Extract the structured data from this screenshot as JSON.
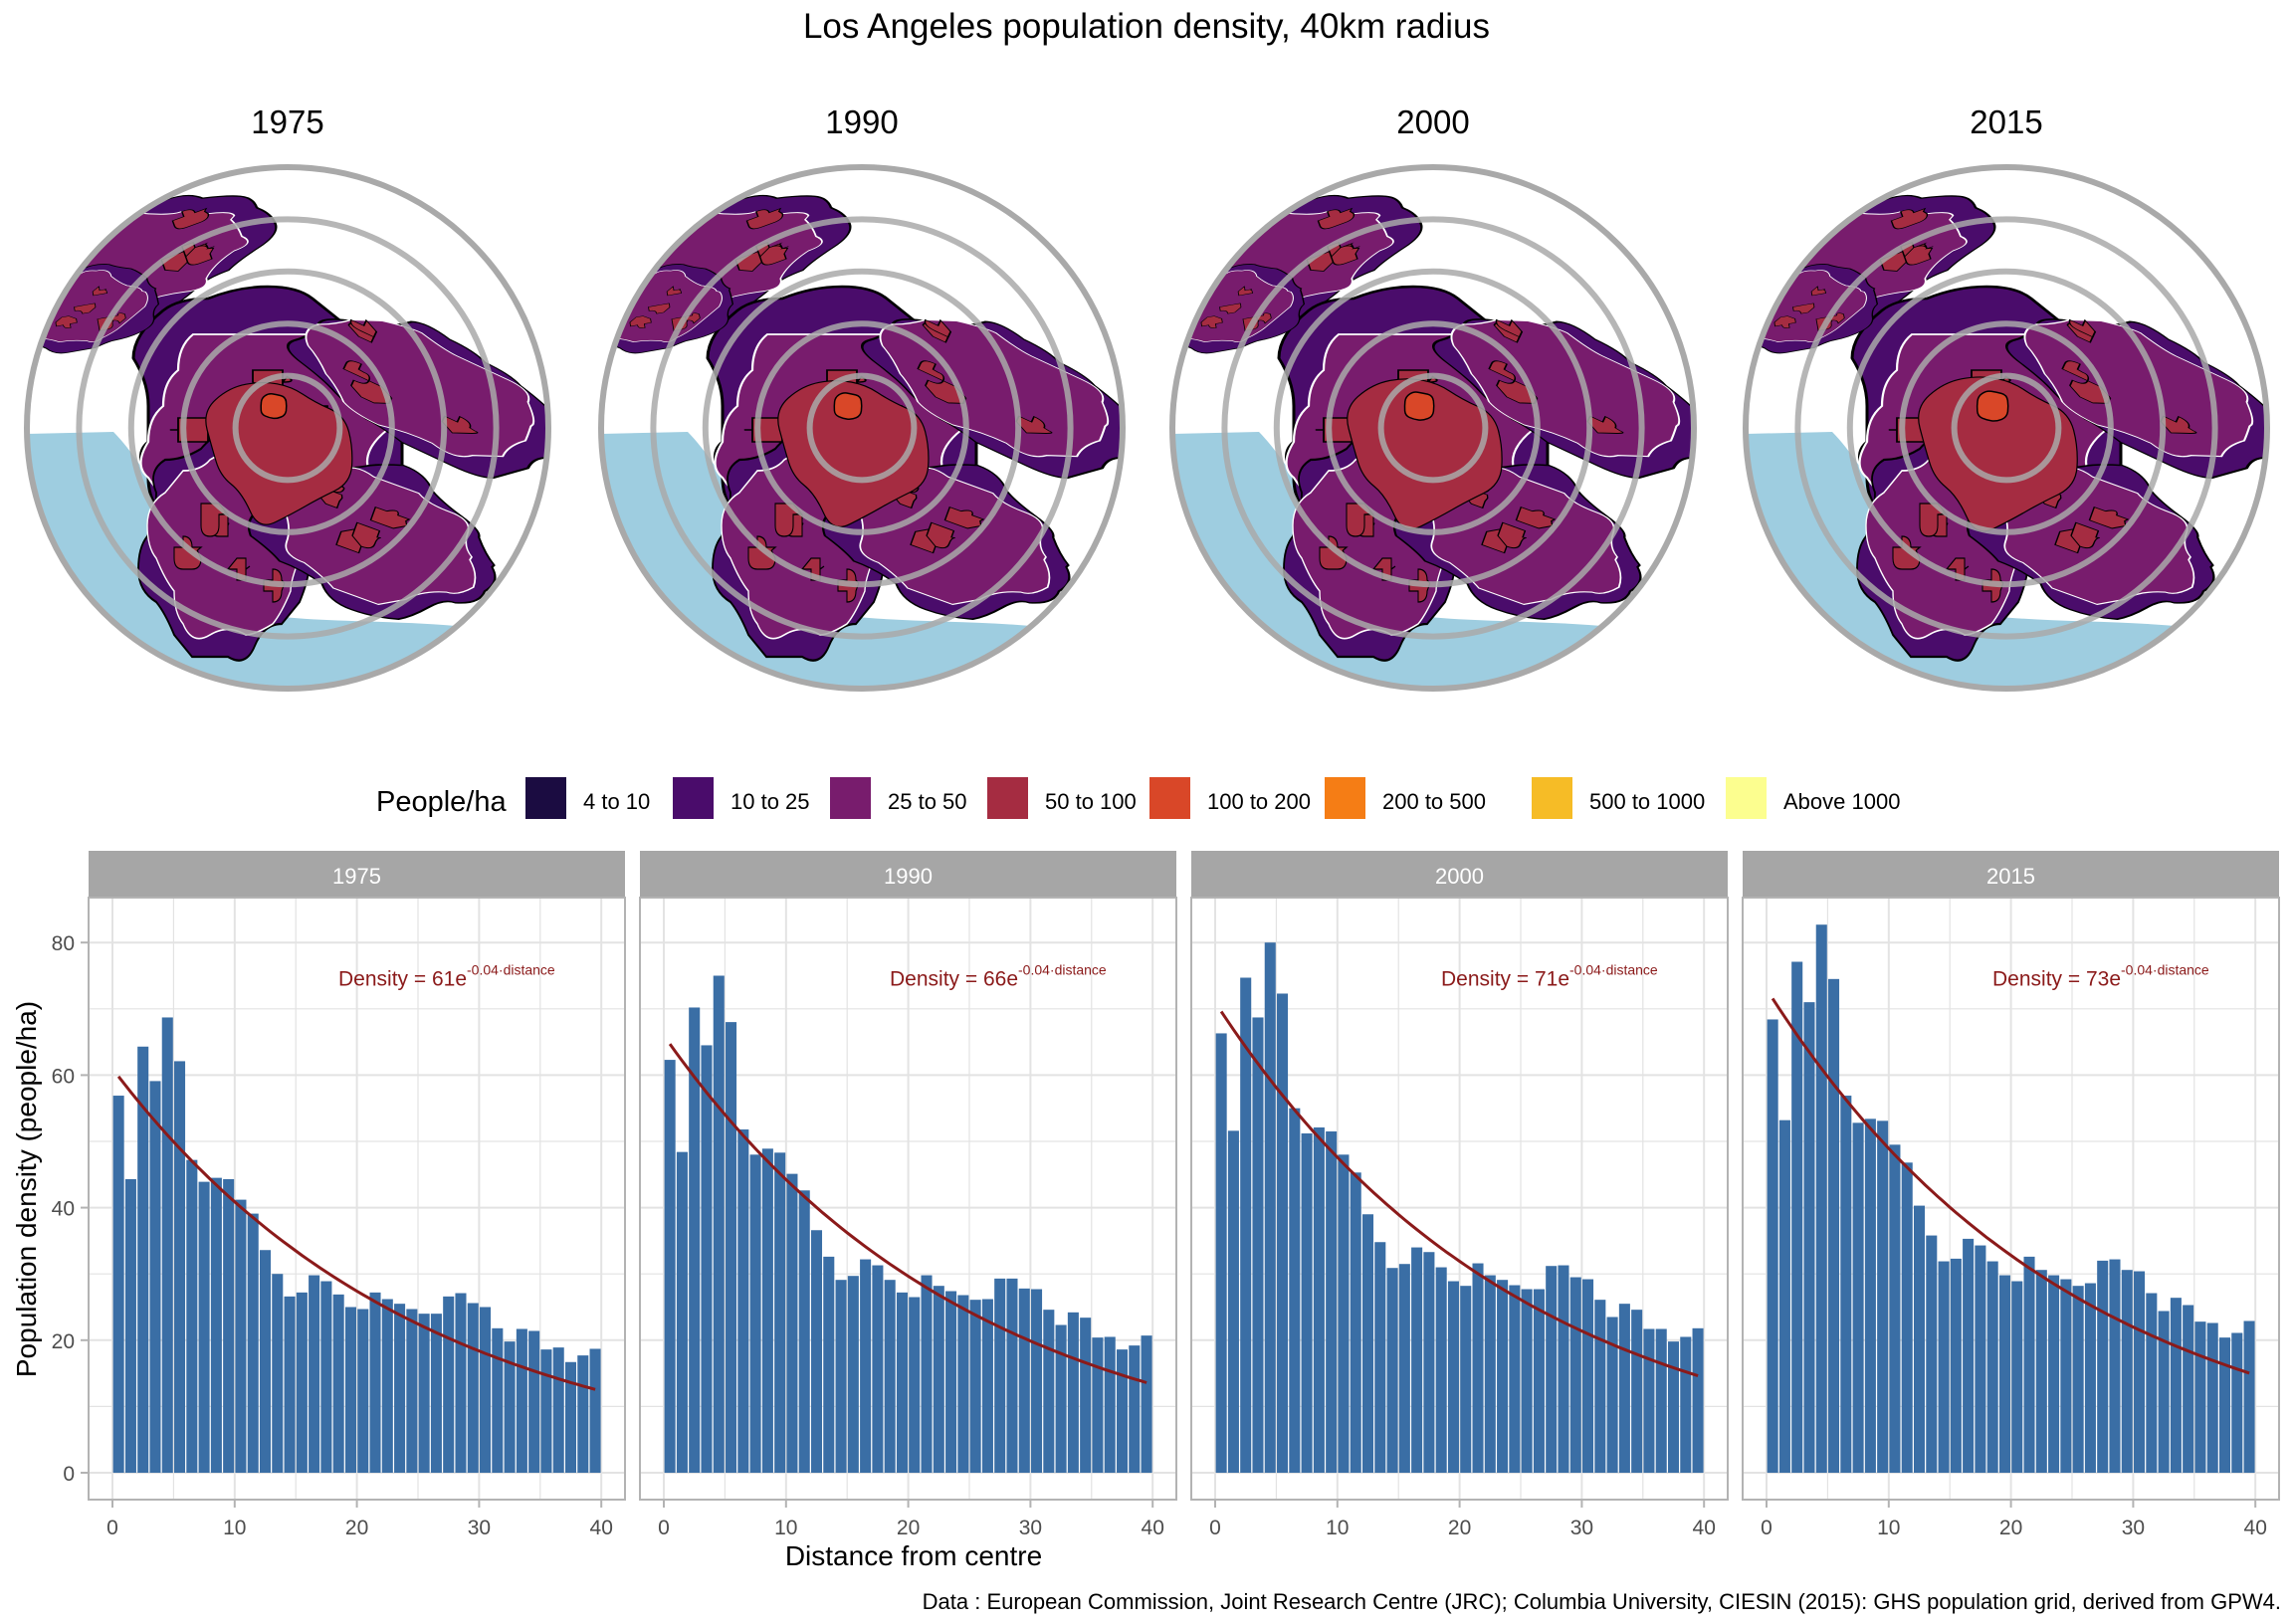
{
  "title": "Los Angeles population density, 40km radius",
  "caption": "Data : European Commission, Joint Research Centre (JRC); Columbia University, CIESIN (2015): GHS population grid, derived from GPW4.",
  "colors": {
    "bar": "#3A6EA5",
    "fit": "#8B1A1A",
    "strip": "#A6A6A6",
    "water": "#9ECDE0",
    "ring": "#A9A9A9"
  },
  "maps": {
    "years": [
      "1975",
      "1990",
      "2000",
      "2015"
    ],
    "ring_count": 5,
    "radius_km": 40
  },
  "legend": {
    "title": "People/ha",
    "items": [
      {
        "label": "4 to 10",
        "color": "#1B0C41"
      },
      {
        "label": "10 to 25",
        "color": "#4A0C6B"
      },
      {
        "label": "25 to 50",
        "color": "#781C6D"
      },
      {
        "label": "50 to 100",
        "color": "#A52C41"
      },
      {
        "label": "100 to 200",
        "color": "#D94728"
      },
      {
        "label": "200 to 500",
        "color": "#F57D15"
      },
      {
        "label": "500 to 1000",
        "color": "#F6BC26"
      },
      {
        "label": "Above 1000",
        "color": "#FCFE8F"
      }
    ]
  },
  "chart_data": {
    "type": "bar",
    "title": "Los Angeles population density, 40km radius",
    "xlabel": "Distance from centre",
    "ylabel": "Population density (people/ha)",
    "xlim": [
      -2,
      42
    ],
    "ylim": [
      -4,
      87
    ],
    "xticks": [
      0,
      10,
      20,
      30,
      40
    ],
    "yticks": [
      0,
      20,
      40,
      60,
      80
    ],
    "grid": true,
    "x": [
      0.5,
      1.5,
      2.5,
      3.5,
      4.5,
      5.5,
      6.5,
      7.5,
      8.5,
      9.5,
      10.5,
      11.5,
      12.5,
      13.5,
      14.5,
      15.5,
      16.5,
      17.5,
      18.5,
      19.5,
      20.5,
      21.5,
      22.5,
      23.5,
      24.5,
      25.5,
      26.5,
      27.5,
      28.5,
      29.5,
      30.5,
      31.5,
      32.5,
      33.5,
      34.5,
      35.5,
      36.5,
      37.5,
      38.5,
      39.5
    ],
    "facets": [
      {
        "name": "1975",
        "fit_label": {
          "prefix": "Density = 61e",
          "exponent": "-0.04·distance"
        },
        "fit": {
          "a": 61,
          "b": -0.04
        },
        "values": [
          56.9,
          44.3,
          64.3,
          59.1,
          68.7,
          62.1,
          47.2,
          43.9,
          44.5,
          44.3,
          41.2,
          39.1,
          33.6,
          30.0,
          26.6,
          27.2,
          29.8,
          28.9,
          26.9,
          25.0,
          24.7,
          27.2,
          26.2,
          25.5,
          24.7,
          24.0,
          24.0,
          26.6,
          27.1,
          25.6,
          25.0,
          21.8,
          19.8,
          21.7,
          21.4,
          18.6,
          18.9,
          16.7,
          17.7,
          18.7
        ]
      },
      {
        "name": "1990",
        "fit_label": {
          "prefix": "Density = 66e",
          "exponent": "-0.04·distance"
        },
        "fit": {
          "a": 66,
          "b": -0.04
        },
        "values": [
          62.3,
          48.4,
          70.2,
          64.5,
          75.0,
          68.0,
          51.8,
          48.0,
          48.9,
          48.3,
          45.1,
          42.6,
          36.6,
          32.6,
          29.1,
          29.7,
          32.2,
          31.3,
          29.1,
          27.2,
          26.5,
          29.8,
          28.2,
          27.4,
          26.8,
          26.1,
          26.2,
          29.3,
          29.3,
          27.8,
          27.7,
          24.6,
          22.3,
          24.2,
          23.4,
          20.4,
          20.5,
          18.6,
          19.2,
          20.7
        ]
      },
      {
        "name": "2000",
        "fit_label": {
          "prefix": "Density = 71e",
          "exponent": "-0.04·distance"
        },
        "fit": {
          "a": 71,
          "b": -0.04
        },
        "values": [
          66.3,
          51.6,
          74.7,
          68.7,
          80.0,
          72.3,
          55.0,
          51.2,
          52.1,
          51.5,
          48.0,
          45.3,
          39.0,
          34.8,
          30.9,
          31.5,
          34.0,
          33.3,
          31.0,
          28.9,
          28.2,
          31.6,
          29.8,
          29.1,
          28.3,
          27.7,
          27.7,
          31.2,
          31.3,
          29.5,
          29.2,
          26.1,
          23.5,
          25.5,
          24.6,
          21.7,
          21.7,
          19.8,
          20.5,
          21.8
        ]
      },
      {
        "name": "2015",
        "fit_label": {
          "prefix": "Density = 73e",
          "exponent": "-0.04·distance"
        },
        "fit": {
          "a": 73,
          "b": -0.04
        },
        "values": [
          68.4,
          53.2,
          77.1,
          71.0,
          82.7,
          74.5,
          56.9,
          52.8,
          53.4,
          53.1,
          49.5,
          46.8,
          40.3,
          35.8,
          31.9,
          32.3,
          35.3,
          34.3,
          31.9,
          29.8,
          28.9,
          32.6,
          30.6,
          29.8,
          29.2,
          28.2,
          28.6,
          32.0,
          32.2,
          30.6,
          30.4,
          27.1,
          24.4,
          26.4,
          25.3,
          22.8,
          22.6,
          20.4,
          21.1,
          22.9
        ]
      }
    ]
  }
}
